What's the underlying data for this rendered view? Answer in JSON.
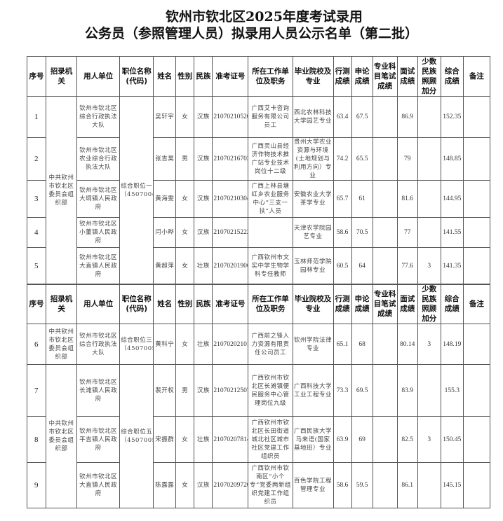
{
  "title": {
    "line1": "钦州市钦北区2025年度考试录用",
    "line2": "公务员（参照管理人员）拟录用人员公示名单（第二批）"
  },
  "headers": [
    "序号",
    "招录机关",
    "用人单位",
    "职位名称(代码)",
    "姓名",
    "性别",
    "民族",
    "准考证号",
    "所在工作单位及职务",
    "毕业院校及专业",
    "行测成绩",
    "申论成绩",
    "专业科目笔试成绩",
    "面试成绩",
    "少数民族照顾加分",
    "综合成绩",
    "备注"
  ],
  "tables": [
    {
      "groups": [
        {
          "agency": "中共钦州市钦北区委员会组织部",
          "position": "综合职位一（45070042）",
          "rows": [
            {
              "seq": "1",
              "unit": "钦州市钦北区综合行政执法大队",
              "name": "吴轩宇",
              "gender": "女",
              "ethnicity": "汉族",
              "exam_no": "21070210520",
              "workplace": "广西艾卡咨询服务有限公司员工",
              "school": "西北农林科技大学园艺专业",
              "xingce": "63.4",
              "shenlun": "67.5",
              "professional": "",
              "interview": "86.9",
              "bonus": "",
              "total": "152.35",
              "remark": ""
            },
            {
              "seq": "2",
              "unit": "钦州市钦北区农业综合行政执法大队",
              "name": "张吉昊",
              "gender": "男",
              "ethnicity": "汉族",
              "exam_no": "21070216702",
              "workplace": "广西灵山县经济作物技术推广站专业技术岗位十二级",
              "school": "贵州大学农业资源与环境(土地规划与利用方向）专业",
              "xingce": "74.2",
              "shenlun": "65.5",
              "professional": "",
              "interview": "79",
              "bonus": "",
              "total": "148.85",
              "remark": ""
            },
            {
              "seq": "3",
              "unit": "钦州市钦北区大垌镇人民政府",
              "name": "黄海雯",
              "gender": "女",
              "ethnicity": "汉族",
              "exam_no": "21070210304",
              "workplace": "广西上林县塘红乡农业服务中心“三支一扶”人员",
              "school": "安徽农业大学茶学专业",
              "xingce": "65.7",
              "shenlun": "61",
              "professional": "",
              "interview": "81.6",
              "bonus": "",
              "total": "144.95",
              "remark": ""
            },
            {
              "seq": "4",
              "unit": "钦州市钦北区小董镇人民政府",
              "name": "闫小晔",
              "gender": "女",
              "ethnicity": "汉族",
              "exam_no": "21070215222",
              "workplace": "",
              "school": "天津农学院园艺专业",
              "xingce": "58.6",
              "shenlun": "70.5",
              "professional": "",
              "interview": "77",
              "bonus": "",
              "total": "141.55",
              "remark": ""
            },
            {
              "seq": "5",
              "unit": "钦州市钦北区大直镇人民政府",
              "name": "黄超萍",
              "gender": "女",
              "ethnicity": "壮族",
              "exam_no": "21070201906",
              "workplace": "广西钦州市文实中学生物学科专任教师",
              "school": "玉林师范学院园林专业",
              "xingce": "60.5",
              "shenlun": "64",
              "professional": "",
              "interview": "77.6",
              "bonus": "3",
              "total": "141.35",
              "remark": ""
            }
          ]
        }
      ]
    },
    {
      "groups": [
        {
          "agency": "中共钦州市钦北区委员会组织部",
          "position": "综合职位三（45070052）",
          "rows": [
            {
              "seq": "6",
              "unit": "钦州市钦北区综合行政执法大队",
              "name": "黄科宁",
              "gender": "女",
              "ethnicity": "壮族",
              "exam_no": "21070202101",
              "workplace": "广西前之锋人力资源有限责任公司员工",
              "school": "钦州学院法律专业",
              "xingce": "65.1",
              "shenlun": "68",
              "professional": "",
              "interview": "80.14",
              "bonus": "3",
              "total": "148.19",
              "remark": ""
            }
          ]
        },
        {
          "agency": "中共钦州市钦北区委员会组织部",
          "position": "综合职位五（45070059）",
          "rows": [
            {
              "seq": "7",
              "unit": "钦州市钦北区长滩镇人民政府",
              "name": "裴开权",
              "gender": "男",
              "ethnicity": "汉族",
              "exam_no": "21070212507",
              "workplace": "广西钦州市钦北区长滩镇便民服务中心管理岗位九级",
              "school": "广西科技大学工业工程专业",
              "xingce": "73.3",
              "shenlun": "69.5",
              "professional": "",
              "interview": "83.9",
              "bonus": "",
              "total": "155.3",
              "remark": ""
            },
            {
              "seq": "8",
              "unit": "钦州市钦北区平吉镇人民政府",
              "name": "宋振群",
              "gender": "女",
              "ethnicity": "壮族",
              "exam_no": "21070207814",
              "workplace": "广西钦州市钦北区长田街道城北社区城市社区党建工作组织员",
              "school": "广西民族大学马来语(国家基地班）专业",
              "xingce": "63.9",
              "shenlun": "69",
              "professional": "",
              "interview": "82.5",
              "bonus": "3",
              "total": "150.45",
              "remark": ""
            },
            {
              "seq": "9",
              "unit": "钦州市钦北区大直镇人民政府",
              "name": "陈露露",
              "gender": "女",
              "ethnicity": "汉族",
              "exam_no": "21070209720",
              "workplace": "广西钦州市钦南区“小个专”党委两新组织党建工作组织员",
              "school": "百色学院工程管理专业",
              "xingce": "58.6",
              "shenlun": "59.5",
              "professional": "",
              "interview": "86.1",
              "bonus": "",
              "total": "145.15",
              "remark": ""
            }
          ]
        }
      ]
    }
  ]
}
